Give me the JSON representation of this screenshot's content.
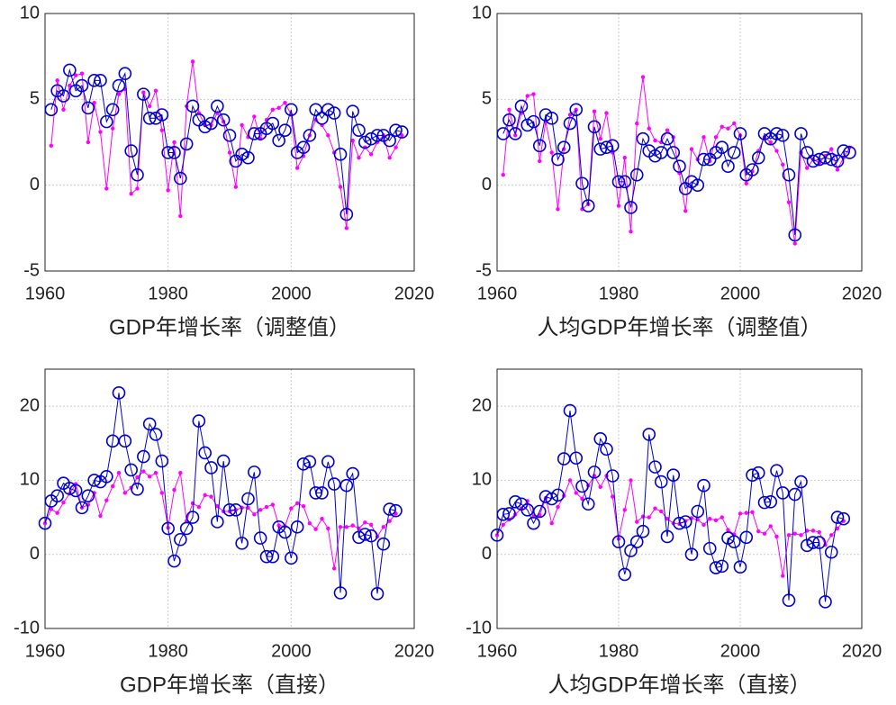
{
  "chart_data": [
    {
      "type": "line",
      "title": "GDP年增长率（调整值）",
      "x": [
        1961,
        1962,
        1963,
        1964,
        1965,
        1966,
        1967,
        1968,
        1969,
        1970,
        1971,
        1972,
        1973,
        1974,
        1975,
        1976,
        1977,
        1978,
        1979,
        1980,
        1981,
        1982,
        1983,
        1984,
        1985,
        1986,
        1987,
        1988,
        1989,
        1990,
        1991,
        1992,
        1993,
        1994,
        1995,
        1996,
        1997,
        1998,
        1999,
        2000,
        2001,
        2002,
        2003,
        2004,
        2005,
        2006,
        2007,
        2008,
        2009,
        2010,
        2011,
        2012,
        2013,
        2014,
        2015,
        2016,
        2017,
        2018
      ],
      "series": [
        {
          "color": "#ff00ff",
          "marker": "dot",
          "values": [
            2.3,
            6.1,
            4.4,
            5.8,
            6.4,
            6.5,
            2.5,
            4.8,
            3.1,
            -0.2,
            3.3,
            5.3,
            5.6,
            -0.5,
            -0.2,
            5.4,
            4.6,
            5.5,
            3.2,
            -0.3,
            2.5,
            -1.8,
            4.6,
            7.2,
            4.2,
            3.5,
            3.5,
            4.2,
            3.7,
            1.9,
            -0.1,
            3.5,
            2.8,
            4.0,
            2.7,
            3.8,
            4.4,
            4.5,
            4.8,
            4.1,
            1.0,
            1.7,
            2.9,
            3.8,
            3.5,
            2.9,
            1.9,
            -0.1,
            -2.5,
            2.6,
            1.6,
            2.2,
            1.8,
            2.5,
            2.9,
            1.6,
            2.2,
            2.9
          ]
        },
        {
          "color": "#0000cc",
          "marker": "circle",
          "values": [
            4.4,
            5.5,
            5.2,
            6.7,
            5.5,
            5.8,
            4.5,
            6.1,
            6.1,
            3.7,
            4.4,
            5.8,
            6.5,
            2.0,
            0.6,
            5.3,
            3.9,
            3.9,
            4.1,
            1.9,
            1.9,
            0.4,
            2.4,
            4.6,
            3.8,
            3.4,
            3.6,
            4.6,
            3.8,
            2.9,
            1.4,
            1.8,
            1.6,
            3.0,
            3.0,
            3.3,
            3.6,
            2.6,
            3.2,
            4.4,
            1.9,
            2.2,
            2.9,
            4.4,
            3.9,
            4.4,
            4.2,
            1.8,
            -1.7,
            4.3,
            3.2,
            2.5,
            2.7,
            2.9,
            2.9,
            2.6,
            3.2,
            3.1
          ]
        }
      ],
      "xlim": [
        1960,
        2020
      ],
      "xticks": [
        1960,
        1980,
        2000,
        2020
      ],
      "ylim": [
        -5,
        10
      ],
      "yticks": [
        -5,
        0,
        5,
        10
      ],
      "grid": true
    },
    {
      "type": "line",
      "title": "人均GDP年增长率（调整值）",
      "x": [
        1961,
        1962,
        1963,
        1964,
        1965,
        1966,
        1967,
        1968,
        1969,
        1970,
        1971,
        1972,
        1973,
        1974,
        1975,
        1976,
        1977,
        1978,
        1979,
        1980,
        1981,
        1982,
        1983,
        1984,
        1985,
        1986,
        1987,
        1988,
        1989,
        1990,
        1991,
        1992,
        1993,
        1994,
        1995,
        1996,
        1997,
        1998,
        1999,
        2000,
        2001,
        2002,
        2003,
        2004,
        2005,
        2006,
        2007,
        2008,
        2009,
        2010,
        2011,
        2012,
        2013,
        2014,
        2015,
        2016,
        2017,
        2018
      ],
      "series": [
        {
          "color": "#ff00ff",
          "marker": "dot",
          "values": [
            0.6,
            4.4,
            2.9,
            4.2,
            5.2,
            5.3,
            1.4,
            3.7,
            1.9,
            -1.4,
            2.1,
            4.1,
            4.4,
            -1.4,
            -1.1,
            4.3,
            2.7,
            4.2,
            1.9,
            -1.2,
            1.6,
            -2.7,
            3.6,
            6.3,
            3.3,
            2.6,
            2.5,
            3.2,
            2.8,
            0.7,
            -1.5,
            2.1,
            1.5,
            2.8,
            1.4,
            2.8,
            3.4,
            3.3,
            3.6,
            2.9,
            0.1,
            0.8,
            2.0,
            2.8,
            2.5,
            2.0,
            1.2,
            -1.0,
            -3.4,
            1.9,
            1.0,
            1.5,
            1.3,
            1.7,
            2.1,
            0.9,
            1.6,
            2.2
          ]
        },
        {
          "color": "#0000cc",
          "marker": "circle",
          "values": [
            3.0,
            3.8,
            3.0,
            4.6,
            3.5,
            3.7,
            2.3,
            4.1,
            3.9,
            1.5,
            2.2,
            3.6,
            4.4,
            0.1,
            -1.2,
            3.4,
            2.1,
            2.2,
            2.3,
            0.2,
            0.2,
            -1.3,
            0.6,
            2.7,
            2.0,
            1.7,
            1.9,
            2.7,
            1.9,
            1.1,
            -0.2,
            0.2,
            0.0,
            1.5,
            1.5,
            1.9,
            2.2,
            1.1,
            1.9,
            3.0,
            0.6,
            0.9,
            1.6,
            3.0,
            2.7,
            3.0,
            2.9,
            0.6,
            -2.9,
            3.0,
            1.9,
            1.4,
            1.5,
            1.6,
            1.5,
            1.4,
            2.0,
            1.9
          ]
        }
      ],
      "xlim": [
        1960,
        2020
      ],
      "xticks": [
        1960,
        1980,
        2000,
        2020
      ],
      "ylim": [
        -5,
        10
      ],
      "yticks": [
        -5,
        0,
        5,
        10
      ],
      "grid": true
    },
    {
      "type": "line",
      "title": "GDP年增长率（直接）",
      "x": [
        1960,
        1961,
        1962,
        1963,
        1964,
        1965,
        1966,
        1967,
        1968,
        1969,
        1970,
        1971,
        1972,
        1973,
        1974,
        1975,
        1976,
        1977,
        1978,
        1979,
        1980,
        1981,
        1982,
        1983,
        1984,
        1985,
        1986,
        1987,
        1988,
        1989,
        1990,
        1991,
        1992,
        1993,
        1994,
        1995,
        1996,
        1997,
        1998,
        1999,
        2000,
        2001,
        2002,
        2003,
        2004,
        2005,
        2006,
        2007,
        2008,
        2009,
        2010,
        2011,
        2012,
        2013,
        2014,
        2015,
        2016,
        2017
      ],
      "series": [
        {
          "color": "#ff00ff",
          "marker": "dot",
          "values": [
            4.2,
            6.1,
            5.6,
            7.0,
            8.2,
            9.5,
            6.3,
            6.7,
            8.3,
            5.2,
            7.3,
            9.2,
            11.0,
            8.3,
            9.0,
            10.4,
            11.2,
            10.5,
            11.0,
            8.3,
            3.6,
            8.7,
            11.0,
            4.5,
            6.9,
            6.4,
            8.0,
            7.8,
            6.5,
            5.8,
            5.8,
            6.0,
            6.3,
            6.3,
            5.4,
            6.0,
            6.4,
            6.7,
            3.9,
            3.8,
            6.2,
            6.9,
            6.5,
            4.2,
            3.4,
            4.8,
            3.5,
            -1.9,
            3.7,
            3.7,
            3.9,
            3.5,
            4.3,
            4.0,
            2.4,
            3.7,
            4.5,
            5.5
          ]
        },
        {
          "color": "#0000cc",
          "marker": "circle",
          "values": [
            4.2,
            7.2,
            7.9,
            9.6,
            8.9,
            8.6,
            6.3,
            7.9,
            10.0,
            9.8,
            10.5,
            15.3,
            21.8,
            15.3,
            11.4,
            8.8,
            13.2,
            17.6,
            16.2,
            12.6,
            3.5,
            -0.9,
            2.0,
            3.5,
            5.0,
            18.0,
            13.7,
            11.7,
            4.4,
            12.6,
            6.0,
            6.0,
            1.5,
            7.5,
            11.1,
            2.2,
            -0.3,
            -0.3,
            3.7,
            3.0,
            -0.5,
            3.7,
            12.2,
            12.5,
            8.3,
            8.3,
            12.5,
            9.5,
            -5.2,
            9.3,
            10.9,
            2.3,
            2.7,
            2.5,
            -5.3,
            1.4,
            6.1,
            5.9
          ]
        }
      ],
      "xlim": [
        1960,
        2020
      ],
      "xticks": [
        1960,
        1980,
        2000,
        2020
      ],
      "ylim": [
        -10,
        25
      ],
      "yticks": [
        -10,
        0,
        10,
        20
      ],
      "grid": true
    },
    {
      "type": "line",
      "title": "人均GDP年增长率（直接）",
      "x": [
        1960,
        1961,
        1962,
        1963,
        1964,
        1965,
        1966,
        1967,
        1968,
        1969,
        1970,
        1971,
        1972,
        1973,
        1974,
        1975,
        1976,
        1977,
        1978,
        1979,
        1980,
        1981,
        1982,
        1983,
        1984,
        1985,
        1986,
        1987,
        1988,
        1989,
        1990,
        1991,
        1992,
        1993,
        1994,
        1995,
        1996,
        1997,
        1998,
        1999,
        2000,
        2001,
        2002,
        2003,
        2004,
        2005,
        2006,
        2007,
        2008,
        2009,
        2010,
        2011,
        2012,
        2013,
        2014,
        2015,
        2016,
        2017
      ],
      "series": [
        {
          "color": "#ff00ff",
          "marker": "dot",
          "values": [
            2.6,
            4.0,
            4.7,
            5.4,
            6.2,
            7.2,
            5.1,
            5.3,
            7.6,
            4.2,
            6.4,
            7.9,
            10.0,
            8.3,
            7.5,
            9.3,
            10.6,
            9.1,
            10.6,
            7.8,
            2.1,
            6.0,
            10.0,
            4.4,
            5.1,
            5.0,
            6.2,
            5.8,
            4.8,
            4.2,
            4.1,
            4.5,
            4.9,
            4.7,
            4.0,
            4.8,
            4.6,
            5.0,
            3.3,
            2.7,
            5.5,
            5.6,
            5.7,
            3.1,
            2.8,
            3.8,
            2.4,
            -2.9,
            2.6,
            2.8,
            2.6,
            3.2,
            3.2,
            3.0,
            1.3,
            2.6,
            3.5,
            4.5
          ]
        },
        {
          "color": "#0000cc",
          "marker": "circle",
          "values": [
            2.6,
            5.4,
            5.5,
            7.1,
            6.8,
            6.0,
            4.2,
            5.8,
            7.8,
            7.5,
            8.0,
            12.9,
            19.4,
            13.0,
            9.2,
            6.8,
            11.1,
            15.6,
            14.2,
            10.6,
            1.7,
            -2.7,
            0.5,
            1.7,
            3.1,
            16.2,
            11.8,
            9.8,
            2.4,
            10.7,
            4.2,
            4.4,
            0.0,
            5.8,
            9.3,
            0.8,
            -1.8,
            -1.6,
            2.2,
            1.7,
            -1.7,
            2.3,
            10.7,
            11.0,
            7.0,
            7.1,
            11.3,
            8.3,
            -6.2,
            8.1,
            9.8,
            1.2,
            1.6,
            1.6,
            -6.4,
            0.3,
            5.0,
            4.8
          ]
        }
      ],
      "xlim": [
        1960,
        2020
      ],
      "xticks": [
        1960,
        1980,
        2000,
        2020
      ],
      "ylim": [
        -10,
        25
      ],
      "yticks": [
        -10,
        0,
        10,
        20
      ],
      "grid": true
    }
  ]
}
